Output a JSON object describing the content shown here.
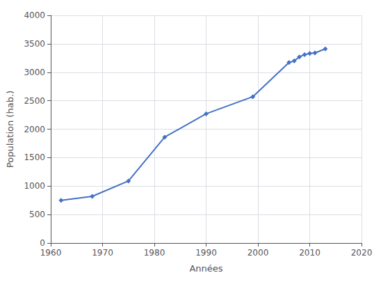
{
  "chart_data": {
    "type": "line",
    "x": [
      1962,
      1968,
      1975,
      1982,
      1990,
      1999,
      2006,
      2007,
      2008,
      2009,
      2010,
      2011,
      2013
    ],
    "values": [
      750,
      820,
      1090,
      1860,
      2270,
      2570,
      3170,
      3200,
      3270,
      3310,
      3330,
      3340,
      3410
    ],
    "color": "#4472c4",
    "marker": "diamond",
    "xlabel": "Années",
    "ylabel": "Population (hab.)",
    "xlim": [
      1960,
      2020
    ],
    "ylim": [
      0,
      4000
    ],
    "xticks": [
      1960,
      1970,
      1980,
      1990,
      2000,
      2010,
      2020
    ],
    "yticks": [
      0,
      500,
      1000,
      1500,
      2000,
      2500,
      3000,
      3500,
      4000
    ],
    "grid": true
  }
}
